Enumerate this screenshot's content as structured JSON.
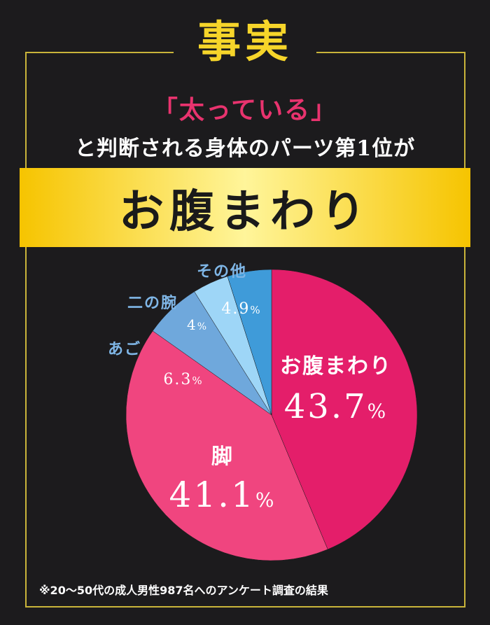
{
  "header": {
    "title": "事実",
    "quote": "「太っている」",
    "subtitle": "と判断される身体のパーツ第1位が",
    "highlight": "お腹まわり"
  },
  "footnote": "※20〜50代の成人男性987名へのアンケート調査の結果",
  "colors": {
    "accent_yellow": "#f6d52a",
    "frame": "#c9b43a",
    "quote_pink": "#e8336e"
  },
  "chart_data": {
    "type": "pie",
    "slices": [
      {
        "label": "お腹まわり",
        "value": 43.7,
        "display": "43.7",
        "color": "#e41e6a"
      },
      {
        "label": "脚",
        "value": 41.1,
        "display": "41.1",
        "color": "#f0457f"
      },
      {
        "label": "あご",
        "value": 6.3,
        "display": "6.3",
        "color": "#6fa8dc"
      },
      {
        "label": "二の腕",
        "value": 4,
        "display": "4",
        "color": "#9ed6f7"
      },
      {
        "label": "その他",
        "value": 4.9,
        "display": "4.9",
        "color": "#3f9bd9"
      }
    ],
    "unit": "%"
  }
}
